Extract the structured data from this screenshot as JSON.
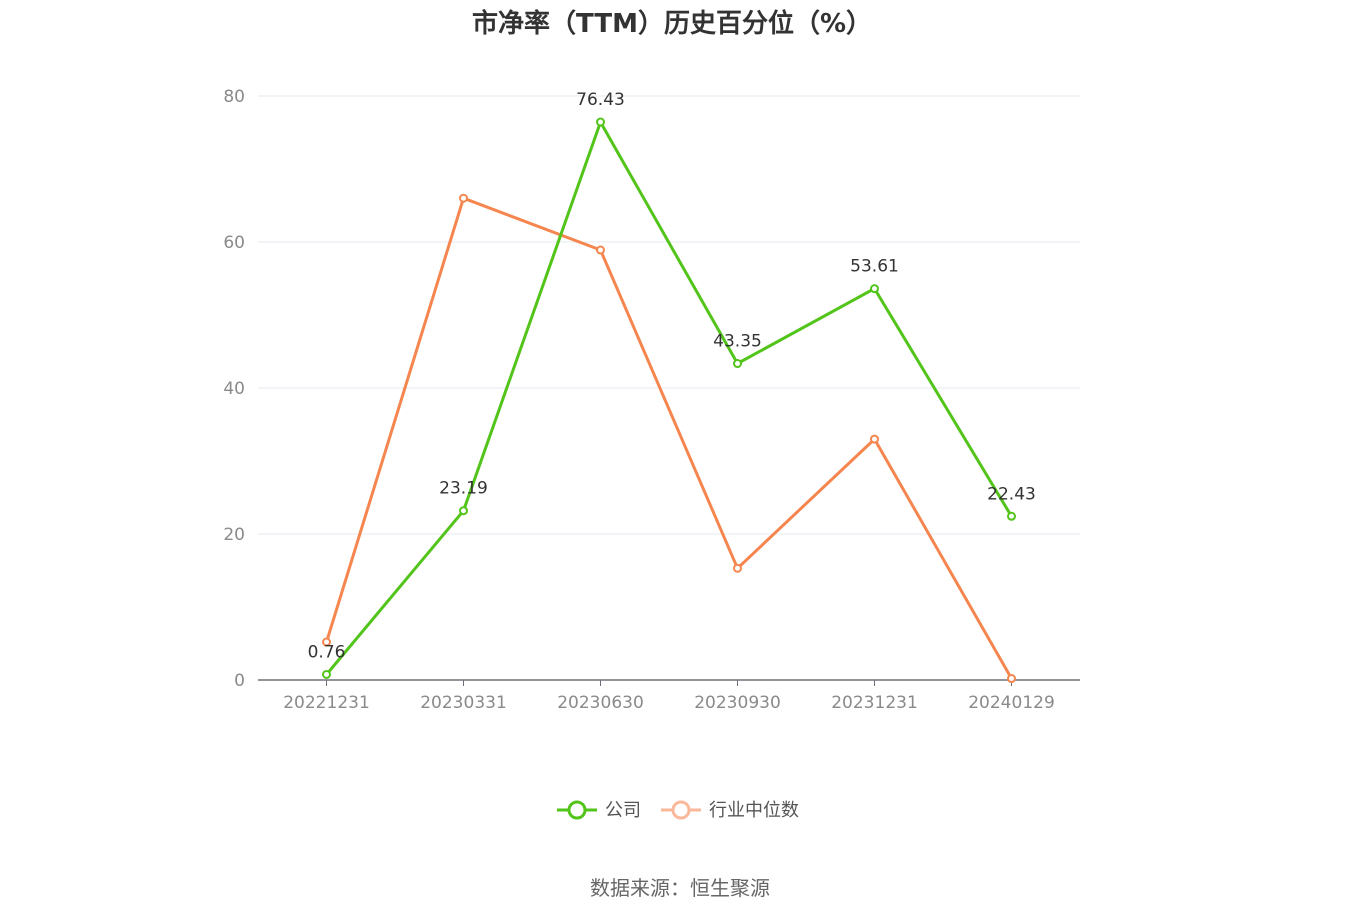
{
  "chart_data": {
    "type": "line",
    "title": "市净率（TTM）历史百分位（%）",
    "categories": [
      "20221231",
      "20230331",
      "20230630",
      "20230930",
      "20231231",
      "20240129"
    ],
    "yticks": [
      0,
      20,
      40,
      60,
      80
    ],
    "ylim": [
      0,
      80
    ],
    "grid": true,
    "legend_position": "bottom",
    "series": [
      {
        "name": "公司",
        "color": "#52c41a",
        "values": [
          0.76,
          23.19,
          76.43,
          43.35,
          53.61,
          22.43
        ],
        "show_labels": true
      },
      {
        "name": "行业中位数",
        "color": "#f5864f",
        "values": [
          5.2,
          66.0,
          58.9,
          15.3,
          33.0,
          0.2
        ],
        "show_labels": false
      }
    ],
    "source": "数据来源：恒生聚源"
  },
  "colors": {
    "grid": "#e6e8f2",
    "axis": "#6e7079",
    "legend_active": "#52c41a",
    "legend_secondary": "#f5864f"
  }
}
